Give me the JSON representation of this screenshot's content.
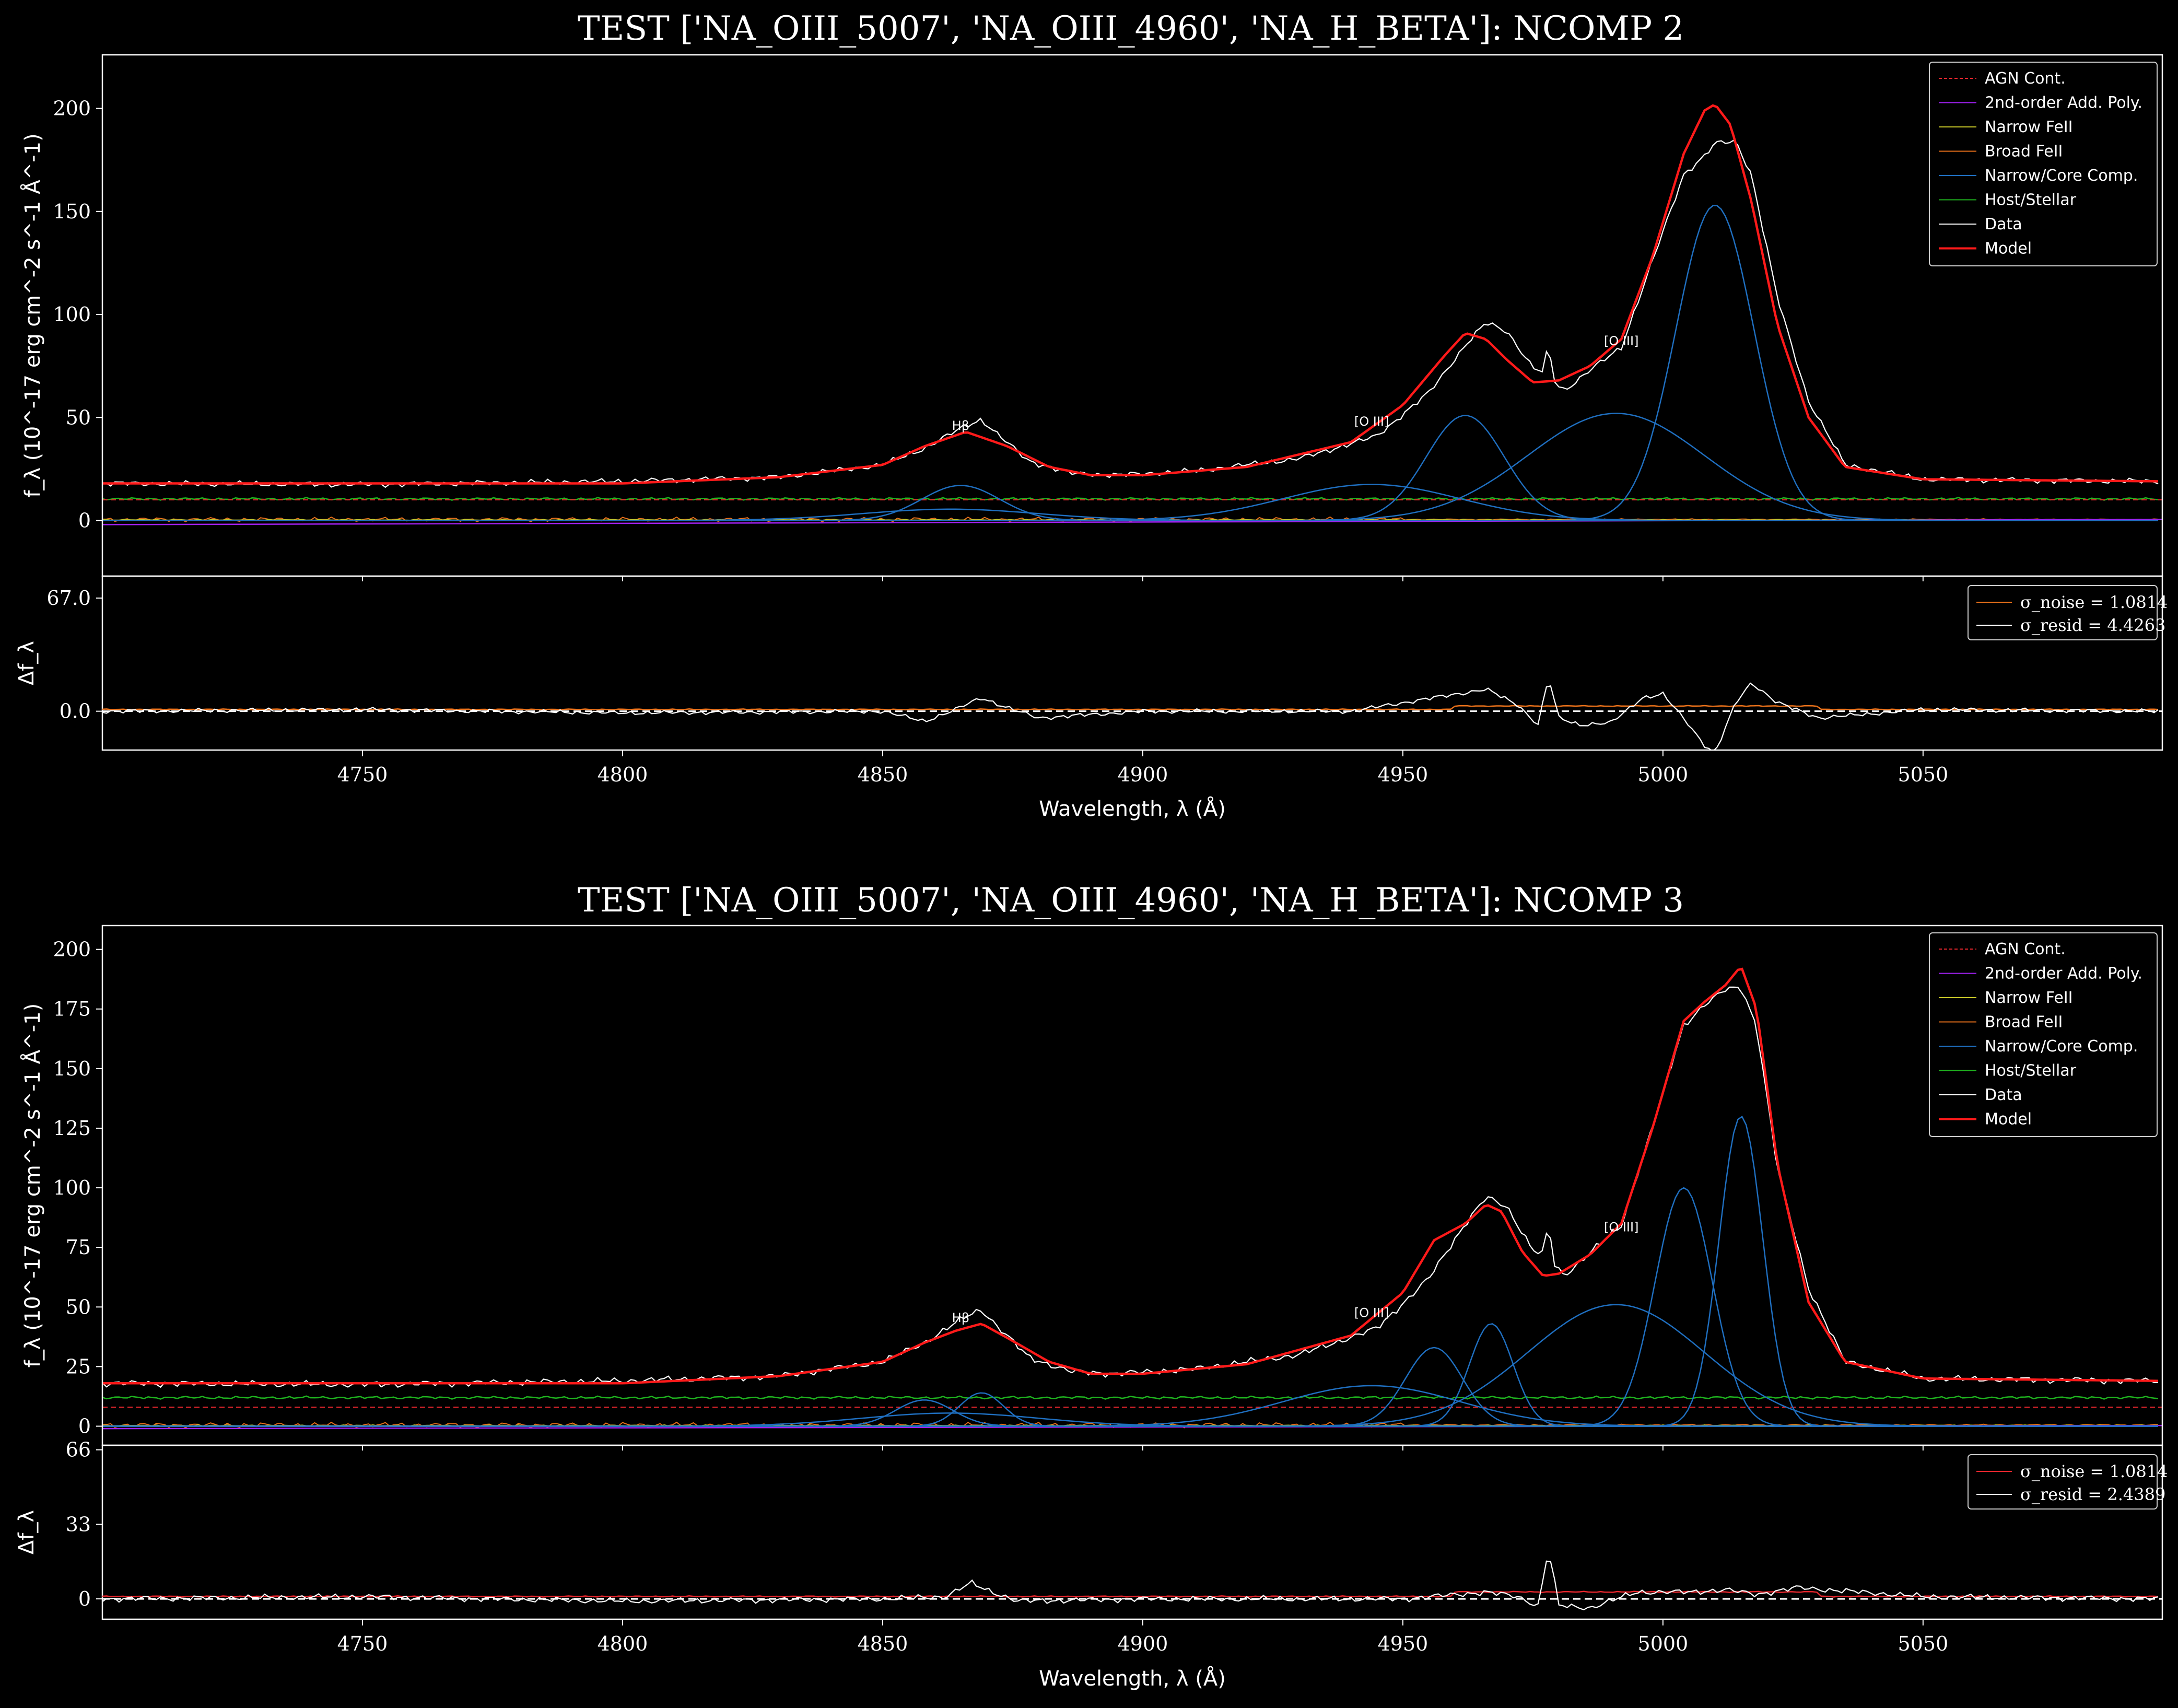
{
  "chart_data": [
    {
      "type": "line",
      "title": "TEST ['NA_OIII_5007', 'NA_OIII_4960', 'NA_H_BETA']: NCOMP 2",
      "xlabel": "Wavelength, λ (Å)",
      "ylabel": "f_λ (10^-17 erg cm^-2 s^-1 Å^-1)",
      "xlim": [
        4700,
        5096
      ],
      "ylim": [
        -27,
        226
      ],
      "x_ticks": [
        4750,
        4800,
        4850,
        4900,
        4950,
        5000,
        5050
      ],
      "y_ticks": [
        0,
        50,
        100,
        150,
        200
      ],
      "legend_position": "top-right",
      "legend": [
        "AGN Cont.",
        "2nd-order Add. Poly.",
        "Narrow FeII",
        "Broad FeII",
        "Narrow/Core Comp.",
        "Host/Stellar",
        "Data",
        "Model"
      ],
      "colors": {
        "agn_cont": "#e8262d",
        "poly": "#a020f0",
        "narrow_feii": "#c8c828",
        "broad_feii": "#e8701a",
        "narrow_core": "#1f6fc0",
        "host": "#1fb41f",
        "data": "#ffffff",
        "model": "#ff1a1a"
      },
      "annotations": [
        {
          "text": "Hβ",
          "x": 4865,
          "y": 42
        },
        {
          "text": "[O III]",
          "x": 4944,
          "y": 44
        },
        {
          "text": "[O III]",
          "x": 4992,
          "y": 83
        }
      ],
      "components": {
        "agn_cont": 10,
        "host_level": 10.5,
        "poly": {
          "at_xmin": -2,
          "at_xmax": 0.5
        },
        "narrow_core_gaussians": [
          {
            "center": 5010,
            "amplitude": 153,
            "sigma": 7.5
          },
          {
            "center": 4962,
            "amplitude": 51,
            "sigma": 7.5
          },
          {
            "center": 4865,
            "amplitude": 17,
            "sigma": 7.5
          },
          {
            "center": 4991,
            "amplitude": 52,
            "sigma": 17
          },
          {
            "center": 4944,
            "amplitude": 17.5,
            "sigma": 17
          },
          {
            "center": 4863,
            "amplitude": 5.5,
            "sigma": 17
          }
        ]
      },
      "model": {
        "x": [
          4700,
          4750,
          4800,
          4830,
          4850,
          4858,
          4866,
          4874,
          4882,
          4890,
          4900,
          4920,
          4940,
          4950,
          4958,
          4962,
          4966,
          4970,
          4975,
          4980,
          4986,
          4992,
          4998,
          5004,
          5008,
          5010,
          5013,
          5017,
          5022,
          5028,
          5035,
          5050,
          5096
        ],
        "y": [
          18,
          18,
          18,
          21,
          27,
          36,
          43,
          36,
          26,
          22,
          22,
          26,
          38,
          56,
          80,
          91,
          88,
          78,
          67,
          68,
          75,
          88,
          128,
          178,
          199,
          202,
          192,
          155,
          95,
          50,
          26,
          20,
          19
        ]
      },
      "data": {
        "x": [
          4700,
          4750,
          4800,
          4830,
          4850,
          4858,
          4866,
          4869,
          4872,
          4878,
          4886,
          4895,
          4910,
          4930,
          4945,
          4955,
          4962,
          4966,
          4970,
          4975,
          4977,
          4978,
          4979,
          4981,
          4986,
          4992,
          4998,
          5004,
          5008,
          5010,
          5014,
          5017,
          5022,
          5028,
          5035,
          5050,
          5096
        ],
        "y": [
          18,
          17.5,
          19,
          21,
          27,
          35,
          46,
          49,
          42,
          29,
          23,
          22,
          24,
          30,
          41,
          62,
          85,
          96,
          92,
          74,
          72,
          86,
          68,
          63,
          73,
          84,
          126,
          168,
          177,
          183,
          184,
          168,
          108,
          58,
          27,
          20,
          19
        ]
      },
      "residual": {
        "ylabel": "Δf_λ",
        "ylim": [
          -23,
          80
        ],
        "y_ticks": [
          0,
          67
        ],
        "y_tick_labels": [
          "0.0",
          "67.0"
        ],
        "legend_position": "top-right",
        "legend": [
          {
            "label": "σ_noise = 1.0814",
            "color": "#e8701a"
          },
          {
            "label": "σ_resid = 4.4263",
            "color": "#ffffff"
          }
        ],
        "noise_level": 1.0814,
        "zero_line": true,
        "x": [
          4700,
          4750,
          4800,
          4850,
          4858,
          4864,
          4869,
          4874,
          4880,
          4900,
          4940,
          4958,
          4966,
          4972,
          4976,
          4978,
          4980,
          4984,
          4990,
          4996,
          5000,
          5005,
          5008,
          5010,
          5014,
          5017,
          5022,
          5030,
          5050,
          5096
        ],
        "y": [
          0,
          1,
          -1,
          0,
          -6,
          1,
          8,
          2,
          -4,
          0,
          0,
          9,
          13,
          4,
          -8,
          20,
          -4,
          -8,
          -7,
          8,
          10,
          -8,
          -20,
          -25,
          5,
          17,
          5,
          -4,
          1,
          0
        ]
      }
    },
    {
      "type": "line",
      "title": "TEST ['NA_OIII_5007', 'NA_OIII_4960', 'NA_H_BETA']: NCOMP 3",
      "xlabel": "Wavelength, λ (Å)",
      "ylabel": "f_λ (10^-17 erg cm^-2 s^-1 Å^-1)",
      "xlim": [
        4700,
        5096
      ],
      "ylim": [
        -8,
        210
      ],
      "x_ticks": [
        4750,
        4800,
        4850,
        4900,
        4950,
        5000,
        5050
      ],
      "y_ticks": [
        0,
        25,
        50,
        75,
        100,
        125,
        150,
        175,
        200
      ],
      "legend_position": "top-right",
      "legend": [
        "AGN Cont.",
        "2nd-order Add. Poly.",
        "Narrow FeII",
        "Broad FeII",
        "Narrow/Core Comp.",
        "Host/Stellar",
        "Data",
        "Model"
      ],
      "colors": {
        "agn_cont": "#e8262d",
        "poly": "#a020f0",
        "narrow_feii": "#c8c828",
        "broad_feii": "#e8701a",
        "narrow_core": "#1f6fc0",
        "host": "#1fb41f",
        "data": "#ffffff",
        "model": "#ff1a1a"
      },
      "annotations": [
        {
          "text": "Hβ",
          "x": 4865,
          "y": 42
        },
        {
          "text": "[O III]",
          "x": 4944,
          "y": 44
        },
        {
          "text": "[O III]",
          "x": 4992,
          "y": 80
        }
      ],
      "components": {
        "agn_cont": 8,
        "host_level": 12,
        "poly": {
          "at_xmin": -1,
          "at_xmax": 0.3
        },
        "narrow_core_gaussians": [
          {
            "center": 5015,
            "amplitude": 130,
            "sigma": 4.2
          },
          {
            "center": 5004,
            "amplitude": 100,
            "sigma": 5.5
          },
          {
            "center": 4967,
            "amplitude": 43,
            "sigma": 4.2
          },
          {
            "center": 4956,
            "amplitude": 33,
            "sigma": 5.5
          },
          {
            "center": 4869,
            "amplitude": 14,
            "sigma": 4.2
          },
          {
            "center": 4858,
            "amplitude": 11,
            "sigma": 5.5
          },
          {
            "center": 4991,
            "amplitude": 51,
            "sigma": 17
          },
          {
            "center": 4944,
            "amplitude": 17,
            "sigma": 17
          },
          {
            "center": 4863,
            "amplitude": 5.5,
            "sigma": 17
          }
        ]
      },
      "model": {
        "x": [
          4700,
          4750,
          4800,
          4830,
          4850,
          4858,
          4864,
          4869,
          4874,
          4882,
          4890,
          4900,
          4920,
          4940,
          4950,
          4956,
          4962,
          4966,
          4969,
          4973,
          4977,
          4980,
          4986,
          4992,
          4998,
          5004,
          5008,
          5012,
          5015,
          5018,
          5022,
          5028,
          5035,
          5050,
          5096
        ],
        "y": [
          18,
          18,
          18,
          21,
          27,
          35,
          40,
          43,
          37,
          27,
          22,
          22,
          26,
          38,
          56,
          78,
          85,
          93,
          90,
          73,
          63,
          64,
          72,
          85,
          125,
          170,
          178,
          185,
          193,
          175,
          110,
          52,
          27,
          20,
          19
        ]
      },
      "data": {
        "x": [
          4700,
          4750,
          4800,
          4830,
          4850,
          4858,
          4866,
          4869,
          4872,
          4878,
          4886,
          4895,
          4910,
          4930,
          4945,
          4955,
          4962,
          4966,
          4970,
          4975,
          4977,
          4978,
          4979,
          4981,
          4986,
          4992,
          4998,
          5004,
          5008,
          5012,
          5015,
          5018,
          5022,
          5028,
          5035,
          5050,
          5096
        ],
        "y": [
          18,
          17.5,
          19,
          21,
          27,
          35,
          46,
          49,
          42,
          29,
          23,
          22,
          24,
          30,
          41,
          62,
          85,
          96,
          92,
          74,
          72,
          86,
          68,
          63,
          73,
          84,
          126,
          168,
          177,
          183,
          184,
          168,
          108,
          58,
          27,
          20,
          19
        ]
      },
      "residual": {
        "ylabel": "Δf_λ",
        "ylim": [
          -9,
          68
        ],
        "y_ticks": [
          0,
          33,
          66
        ],
        "y_tick_labels": [
          "0",
          "33",
          "66"
        ],
        "legend_position": "top-right",
        "legend": [
          {
            "label": "σ_noise = 1.0814",
            "color": "#e8262d"
          },
          {
            "label": "σ_resid = 2.4389",
            "color": "#ffffff"
          }
        ],
        "noise_level": 1.0814,
        "zero_line": true,
        "x": [
          4700,
          4750,
          4800,
          4850,
          4862,
          4867,
          4870,
          4876,
          4900,
          4950,
          4966,
          4972,
          4976,
          4978,
          4980,
          4986,
          4995,
          5005,
          5012,
          5018,
          5026,
          5050,
          5096
        ],
        "y": [
          0,
          1,
          -1,
          0,
          1,
          7,
          4,
          -1,
          0,
          0,
          3,
          1,
          -3,
          22,
          -3,
          -4,
          3,
          3,
          4,
          2,
          5,
          1,
          0
        ]
      }
    }
  ]
}
